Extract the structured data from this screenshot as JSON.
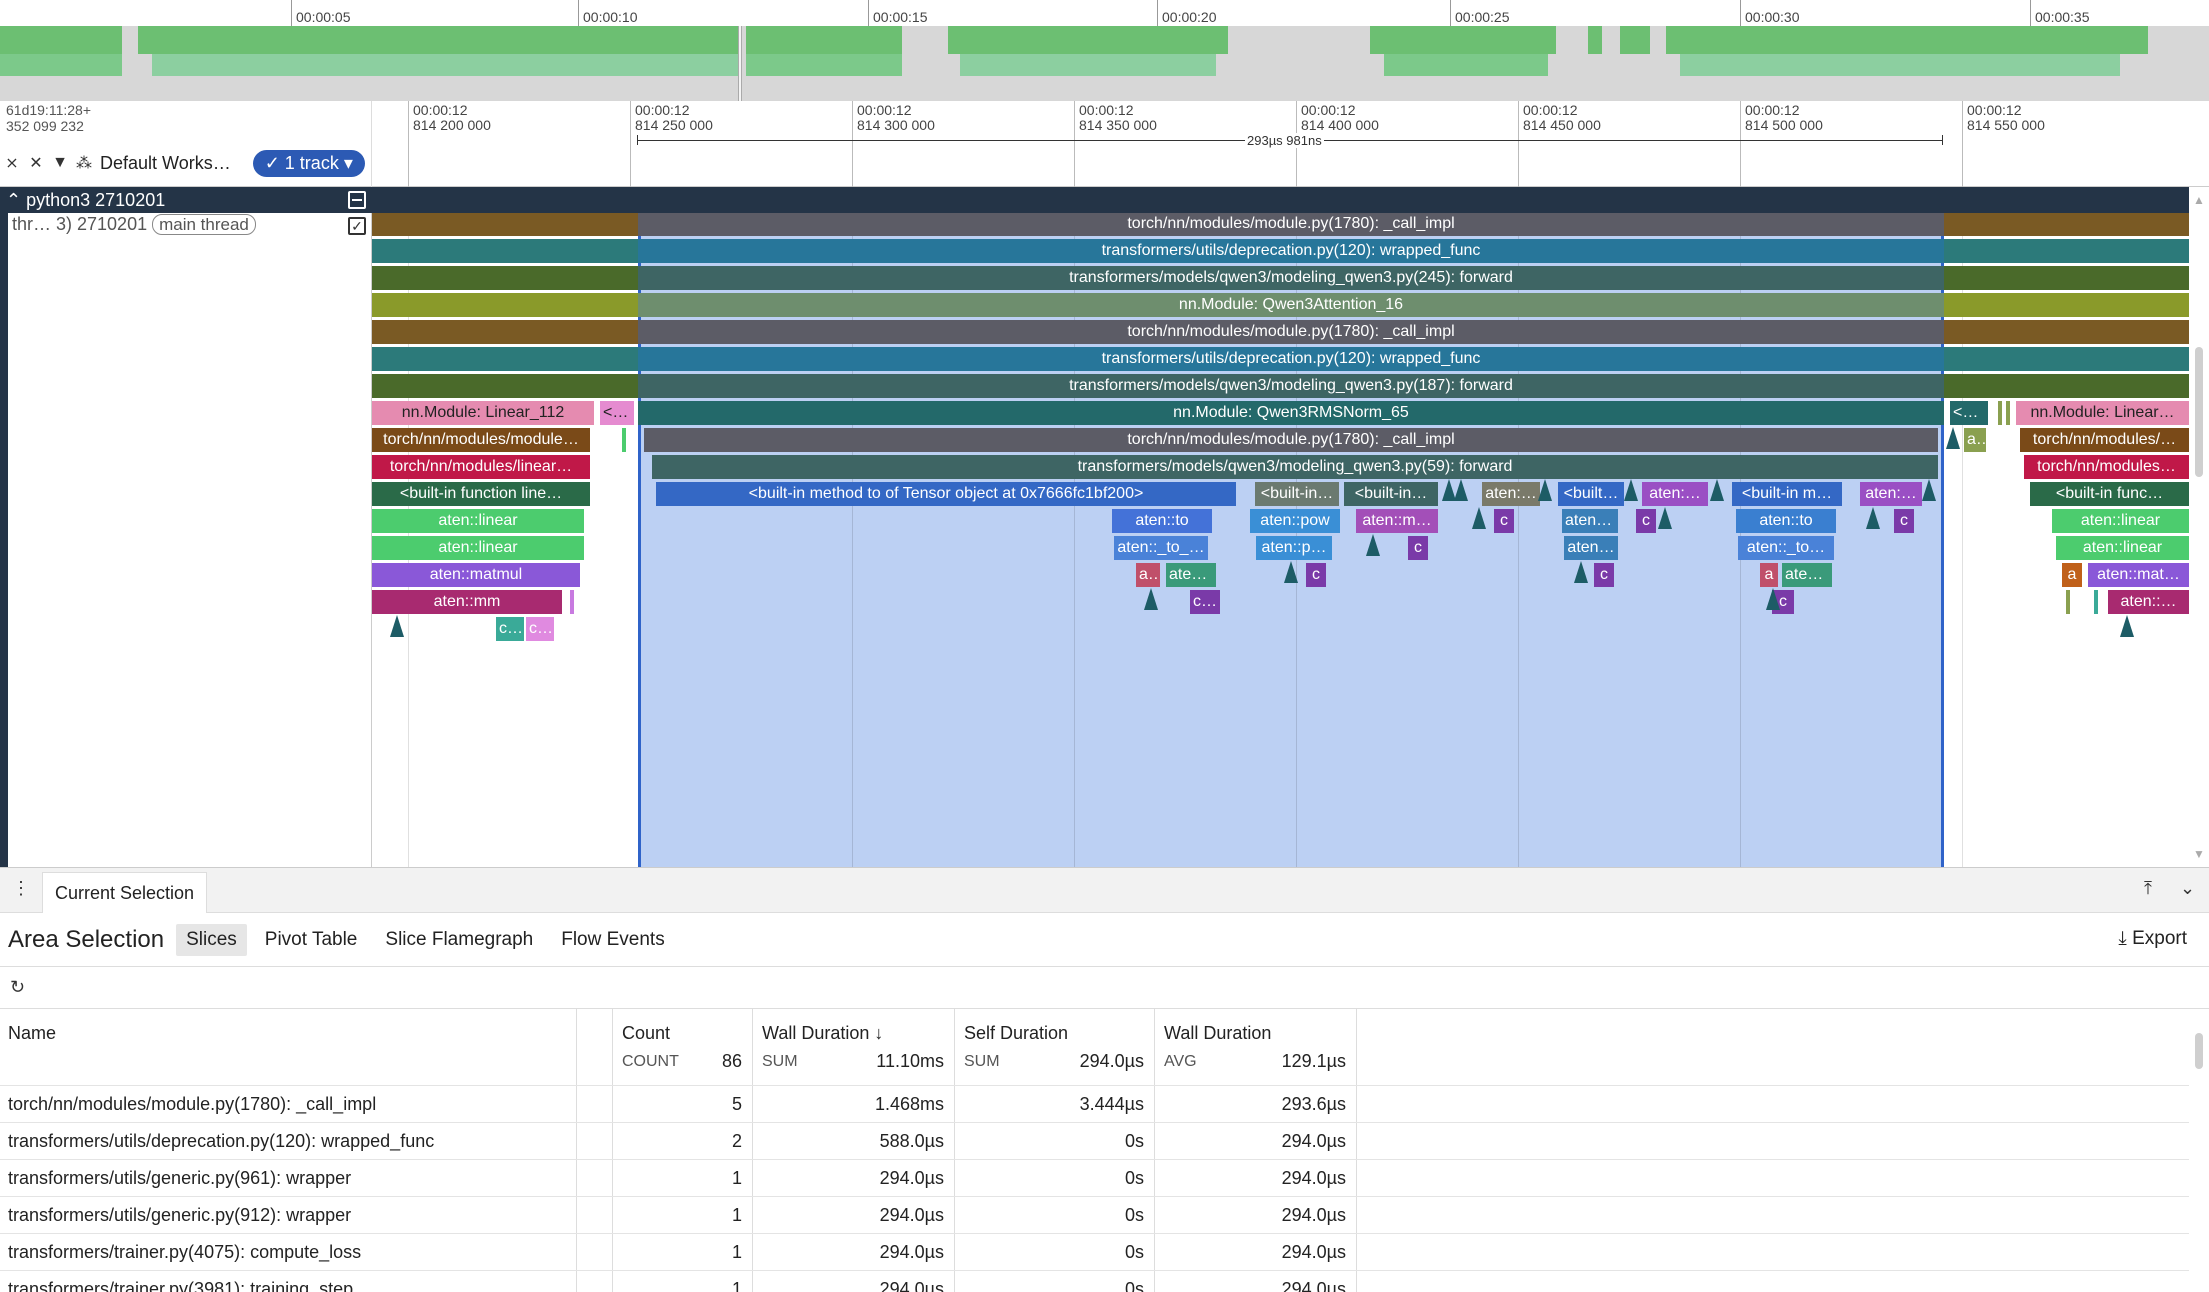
{
  "overview": {
    "ticks": [
      "00:00:05",
      "00:00:10",
      "00:00:15",
      "00:00:20",
      "00:00:25",
      "00:00:30",
      "00:00:35"
    ]
  },
  "header": {
    "time_origin_line1": "61d19:11:28+",
    "time_origin_line2": "352 099 232",
    "collapse_icon": "collapse-all-icon",
    "unpin_icon": "unpin-icon",
    "filter_icon": "filter-icon",
    "workspace_icon": "workspace-icon",
    "workspace_label": "Default Works…",
    "track_pill_label": "1 track",
    "span_label": "293µs 981ns",
    "ticks": [
      {
        "l1": "00:00:12",
        "l2": "814 200 000"
      },
      {
        "l1": "00:00:12",
        "l2": "814 250 000"
      },
      {
        "l1": "00:00:12",
        "l2": "814 300 000"
      },
      {
        "l1": "00:00:12",
        "l2": "814 350 000"
      },
      {
        "l1": "00:00:12",
        "l2": "814 400 000"
      },
      {
        "l1": "00:00:12",
        "l2": "814 450 000"
      },
      {
        "l1": "00:00:12",
        "l2": "814 500 000"
      },
      {
        "l1": "00:00:12",
        "l2": "814 550 000"
      }
    ]
  },
  "tracks": {
    "process_label": "python3 2710201",
    "thread_label": "thr… 3) 2710201",
    "thread_tag": "main thread"
  },
  "slices": [
    {
      "t": "torch/nn/modules/module.py(1780): _call_impl",
      "c": "#5c5c66"
    },
    {
      "t": "transformers/utils/deprecation.py(120): wrapped_func",
      "c": "#27769a"
    },
    {
      "t": "transformers/models/qwen3/modeling_qwen3.py(245): forward",
      "c": "#3e6564"
    },
    {
      "t": "nn.Module: Qwen3Attention_16",
      "c": "#6e8e6e"
    },
    {
      "t": "torch/nn/modules/module.py(1780): _call_impl",
      "c": "#5c5c66"
    },
    {
      "t": "transformers/utils/deprecation.py(120): wrapped_func",
      "c": "#27769a"
    },
    {
      "t": "transformers/models/qwen3/modeling_qwen3.py(187): forward",
      "c": "#3e6564"
    },
    {
      "t": "nn.Module: Qwen3RMSNorm_65",
      "c": "#23696a"
    },
    {
      "t": "torch/nn/modules/module.py(1780): _call_impl",
      "c": "#5c5c66"
    },
    {
      "t": "transformers/models/qwen3/modeling_qwen3.py(59): forward",
      "c": "#3e6564"
    },
    {
      "t": "<built-in method to of Tensor object at 0x7666fc1bf200>",
      "c": "#3468c5"
    },
    {
      "t": "<built-in…",
      "c": "#6b7a70"
    },
    {
      "t": "<built-in…",
      "c": "#3e6564"
    },
    {
      "t": "aten:…",
      "c": "#7a7a6a"
    },
    {
      "t": "<built…",
      "c": "#3468c5"
    },
    {
      "t": "aten:…",
      "c": "#9a4fc4"
    },
    {
      "t": "<built-in m…",
      "c": "#3468c5"
    },
    {
      "t": "aten:…",
      "c": "#9a4fc4"
    },
    {
      "t": "aten::to",
      "c": "#4472d8"
    },
    {
      "t": "aten::pow",
      "c": "#3a8fd6"
    },
    {
      "t": "aten::m…",
      "c": "#a34fb8"
    },
    {
      "t": "aten:…",
      "c": "#3a7fb8"
    },
    {
      "t": "aten::to",
      "c": "#3a7fd0"
    },
    {
      "t": "aten::_to_…",
      "c": "#4a82d8"
    },
    {
      "t": "aten::p…",
      "c": "#3a8fd6"
    },
    {
      "t": "aten…",
      "c": "#3a7fb8"
    },
    {
      "t": "aten::_to…",
      "c": "#4a82d8"
    },
    {
      "t": "a…",
      "c": "#c0506a"
    },
    {
      "t": "aten…",
      "c": "#3a9a7a"
    },
    {
      "t": "a",
      "c": "#c0506a"
    },
    {
      "t": "aten…",
      "c": "#3a9a7a"
    },
    {
      "t": "c",
      "c": "#7a3aa8"
    },
    {
      "t": "c…",
      "c": "#7a3aa8"
    },
    {
      "t": "nn.Module: Linear_112",
      "c": "#e58bb0"
    },
    {
      "t": "<b…",
      "c": "#e58bd0"
    },
    {
      "t": "torch/nn/modules/module…",
      "c": "#7a4a18"
    },
    {
      "t": "torch/nn/modules/linear…",
      "c": "#c01848"
    },
    {
      "t": "<built-in function line…",
      "c": "#2a6a48"
    },
    {
      "t": "aten::linear",
      "c": "#4ccc6e"
    },
    {
      "t": "aten::linear",
      "c": "#4ccc6e"
    },
    {
      "t": "aten::matmul",
      "c": "#8a58d8"
    },
    {
      "t": "aten::mm",
      "c": "#a82a70"
    },
    {
      "t": "c…",
      "c": "#3aaa98"
    },
    {
      "t": "c…",
      "c": "#e08ae0"
    },
    {
      "t": "<b…",
      "c": "#23696a"
    },
    {
      "t": "a…",
      "c": "#8aa050"
    },
    {
      "t": "nn.Module: Linear…",
      "c": "#e58bb0"
    },
    {
      "t": "torch/nn/modules/…",
      "c": "#7a4a18"
    },
    {
      "t": "torch/nn/modules…",
      "c": "#c01848"
    },
    {
      "t": "<built-in func…",
      "c": "#2a6a48"
    },
    {
      "t": "aten::linear",
      "c": "#4ccc6e"
    },
    {
      "t": "aten::linear",
      "c": "#4ccc6e"
    },
    {
      "t": "a",
      "c": "#c0601a"
    },
    {
      "t": "aten::mat…",
      "c": "#8a58d8"
    },
    {
      "t": "aten::…",
      "c": "#a82a70"
    }
  ],
  "bottom": {
    "tab_menu_icon": "more-vert-icon",
    "tab_label": "Current Selection",
    "pin_icon": "pin-to-top-icon",
    "collapse_icon": "chevron-down-icon",
    "title": "Area Selection",
    "subtabs": [
      "Slices",
      "Pivot Table",
      "Slice Flamegraph",
      "Flow Events"
    ],
    "export_label": "Export",
    "refresh_icon": "refresh-icon"
  },
  "table": {
    "columns": [
      {
        "name": "Name",
        "agg": "",
        "total": ""
      },
      {
        "name": "Count",
        "agg": "COUNT",
        "total": "86"
      },
      {
        "name": "Wall Duration",
        "agg": "SUM",
        "total": "11.10ms",
        "sort": "↓"
      },
      {
        "name": "Self Duration",
        "agg": "SUM",
        "total": "294.0µs"
      },
      {
        "name": "Wall Duration",
        "agg": "AVG",
        "total": "129.1µs"
      }
    ],
    "rows": [
      {
        "name": "torch/nn/modules/module.py(1780): _call_impl",
        "count": "5",
        "wall": "1.468ms",
        "self": "3.444µs",
        "avg": "293.6µs"
      },
      {
        "name": "transformers/utils/deprecation.py(120): wrapped_func",
        "count": "2",
        "wall": "588.0µs",
        "self": "0s",
        "avg": "294.0µs"
      },
      {
        "name": "transformers/utils/generic.py(961): wrapper",
        "count": "1",
        "wall": "294.0µs",
        "self": "0s",
        "avg": "294.0µs"
      },
      {
        "name": "transformers/utils/generic.py(912): wrapper",
        "count": "1",
        "wall": "294.0µs",
        "self": "0s",
        "avg": "294.0µs"
      },
      {
        "name": "transformers/trainer.py(4075): compute_loss",
        "count": "1",
        "wall": "294.0µs",
        "self": "0s",
        "avg": "294.0µs"
      },
      {
        "name": "transformers/trainer.py(3981): training_step",
        "count": "1",
        "wall": "294.0µs",
        "self": "0s",
        "avg": "294.0µs"
      }
    ]
  },
  "colors": {
    "process_bar": "#243447",
    "selection": "#bcd0f3",
    "selection_border": "#2f63c9",
    "track_pill": "#2c5ab4",
    "overview_green": "#66bb6a"
  }
}
